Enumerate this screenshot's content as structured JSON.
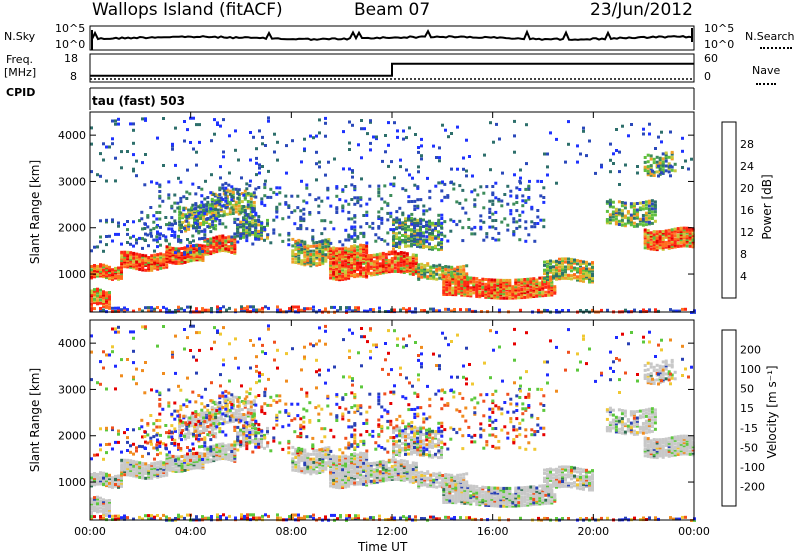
{
  "header": {
    "station": "Wallops Island (fitACF)",
    "beam": "Beam 07",
    "date": "23/Jun/2012"
  },
  "side_labels": {
    "nsky": "N.Sky",
    "nsearch": "N.Search",
    "freq": "Freq.",
    "mhz": "[MHz]",
    "nave": "Nave",
    "cpid": "CPID",
    "cpid_value": "tau (fast) 503"
  },
  "chart_data": [
    {
      "type": "line",
      "name": "noise",
      "y_ticks_left": [
        "10^5",
        "10^0"
      ],
      "y_ticks_right": [
        "10^5",
        "10^0"
      ]
    },
    {
      "type": "line",
      "name": "frequency",
      "y_ticks_left": [
        "18",
        "8"
      ],
      "y_ticks_right": [
        "60",
        "0"
      ],
      "ylim_left": [
        8,
        18
      ],
      "freq_steps": [
        [
          0,
          9.9
        ],
        [
          12,
          9.9
        ],
        [
          12,
          15.4
        ],
        [
          24,
          15.4
        ]
      ],
      "nave_level": 0
    },
    {
      "type": "heatmap",
      "name": "power",
      "ylabel": "Slant Range [km]",
      "xlim": [
        0,
        24
      ],
      "ylim": [
        180,
        4500
      ],
      "y_ticks": [
        1000,
        2000,
        3000,
        4000
      ],
      "colorbar_label": "Power [dB]",
      "colorbar_ticks": [
        "28",
        "24",
        "20",
        "16",
        "12",
        "8",
        "4"
      ],
      "colors": [
        "#1e32ff",
        "#2a48ba",
        "#2d6f6b",
        "#3c8c5a",
        "#5fbf3c",
        "#c8c83c",
        "#f0a028",
        "#ff6e1e",
        "#ff2814",
        "#e60000"
      ]
    },
    {
      "type": "heatmap",
      "name": "velocity",
      "ylabel": "Slant Range [km]",
      "xlabel": "Time UT",
      "xlim": [
        0,
        24
      ],
      "ylim": [
        180,
        4500
      ],
      "x_ticks": [
        "00:00",
        "04:00",
        "08:00",
        "12:00",
        "16:00",
        "20:00",
        "00:00"
      ],
      "y_ticks": [
        1000,
        2000,
        3000,
        4000
      ],
      "colorbar_label": "Velocity [m s⁻¹]",
      "colorbar_ticks": [
        "200",
        "100",
        "50",
        "15",
        "-15",
        "-50",
        "-100",
        "-200"
      ],
      "colors": [
        "#1e2aff",
        "#2840b4",
        "#2d6e50",
        "#5cc83c",
        "#c8c8c8",
        "#f0c832",
        "#f08c1e",
        "#f0501e",
        "#e60000"
      ]
    }
  ],
  "bands": [
    {
      "t0": 0.0,
      "t1": 1.2,
      "r0": 950,
      "r1": 1200,
      "pal": "strong"
    },
    {
      "t0": 1.2,
      "t1": 3.0,
      "r0": 1150,
      "r1": 1500,
      "pal": "strong"
    },
    {
      "t0": 3.0,
      "t1": 4.5,
      "r0": 1300,
      "r1": 1650,
      "pal": "strong"
    },
    {
      "t0": 4.5,
      "t1": 5.8,
      "r0": 1500,
      "r1": 1850,
      "pal": "strong"
    },
    {
      "t0": 5.8,
      "t1": 7.0,
      "r0": 1800,
      "r1": 2250,
      "pal": "weak"
    },
    {
      "t0": 4.8,
      "t1": 6.5,
      "r0": 2300,
      "r1": 2850,
      "pal": "weak"
    },
    {
      "t0": 3.5,
      "t1": 5.0,
      "r0": 2000,
      "r1": 2500,
      "pal": "weak"
    },
    {
      "t0": 0.0,
      "t1": 4.5,
      "r0": 1500,
      "r1": 2200,
      "pal": "sparse"
    },
    {
      "t0": 0.0,
      "t1": 0.8,
      "r0": 350,
      "r1": 700,
      "pal": "strong"
    },
    {
      "t0": 8.0,
      "t1": 9.5,
      "r0": 1250,
      "r1": 1750,
      "pal": "mid"
    },
    {
      "t0": 9.5,
      "t1": 11.0,
      "r0": 950,
      "r1": 1650,
      "pal": "strong"
    },
    {
      "t0": 11.0,
      "t1": 13.0,
      "r0": 1050,
      "r1": 1500,
      "pal": "strong"
    },
    {
      "t0": 13.0,
      "t1": 15.0,
      "r0": 900,
      "r1": 1250,
      "pal": "mid"
    },
    {
      "t0": 14.0,
      "t1": 18.5,
      "r0": 550,
      "r1": 950,
      "pal": "strong"
    },
    {
      "t0": 18.0,
      "t1": 20.0,
      "r0": 900,
      "r1": 1350,
      "pal": "mid"
    },
    {
      "t0": 12.0,
      "t1": 14.0,
      "r0": 1600,
      "r1": 2200,
      "pal": "weak"
    },
    {
      "t0": 20.5,
      "t1": 22.5,
      "r0": 2100,
      "r1": 2600,
      "pal": "weak"
    },
    {
      "t0": 22.0,
      "t1": 24.0,
      "r0": 1600,
      "r1": 2000,
      "pal": "strong"
    },
    {
      "t0": 22.0,
      "t1": 23.3,
      "r0": 3200,
      "r1": 3650,
      "pal": "weak"
    },
    {
      "t0": 0.0,
      "t1": 24.0,
      "r0": 180,
      "r1": 320,
      "pal": "bottom"
    },
    {
      "t0": 2.0,
      "t1": 18.0,
      "r0": 1700,
      "r1": 3000,
      "pal": "sparse"
    },
    {
      "t0": 0.0,
      "t1": 24.0,
      "r0": 3000,
      "r1": 4400,
      "pal": "verysparse"
    }
  ]
}
